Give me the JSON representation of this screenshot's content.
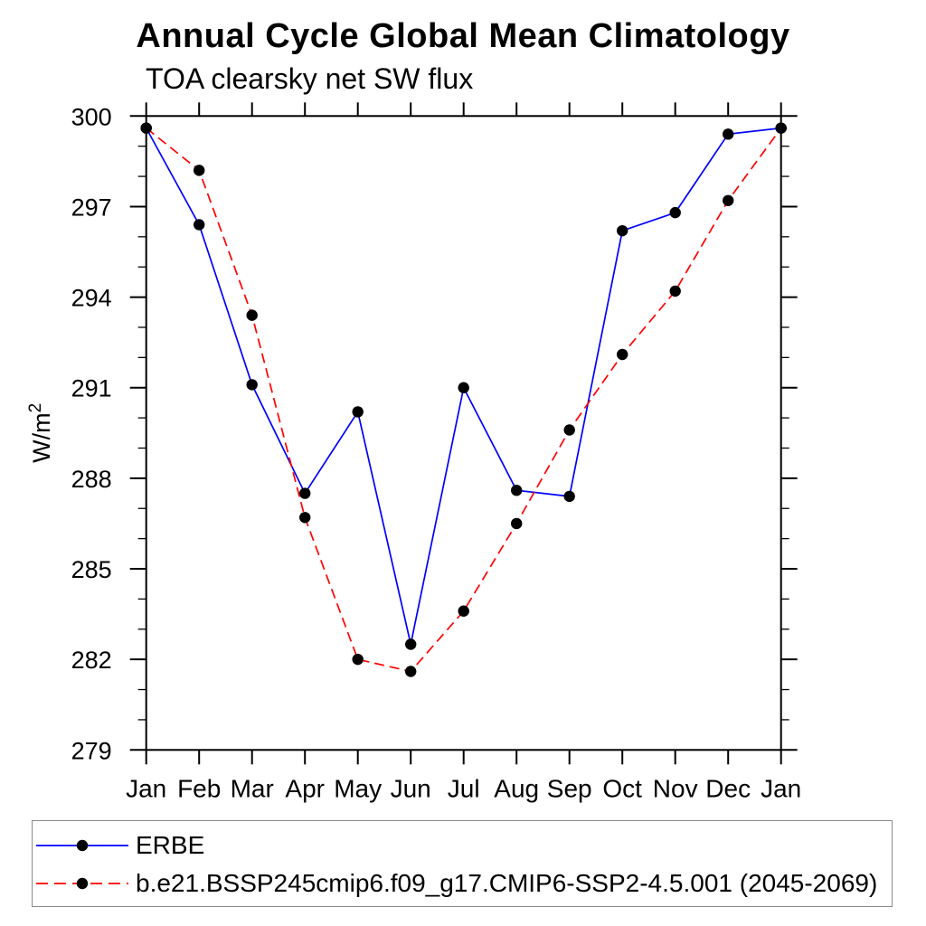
{
  "title": "Annual Cycle Global Mean Climatology",
  "subtitle": "TOA clearsky net SW flux",
  "chart_data": {
    "type": "line",
    "x": [
      "Jan",
      "Feb",
      "Mar",
      "Apr",
      "May",
      "Jun",
      "Jul",
      "Aug",
      "Sep",
      "Oct",
      "Nov",
      "Dec",
      "Jan"
    ],
    "xlabel": "",
    "ylabel": "W/m",
    "ylabel_sup": "2",
    "ylim": [
      279,
      300
    ],
    "yticks": [
      279,
      282,
      285,
      288,
      291,
      294,
      297,
      300
    ],
    "ytick_step": 3,
    "yminor_step": 1,
    "grid": false,
    "legend_position": "bottom-left-box",
    "frame_color": "#000000",
    "marker": "filled-circle",
    "marker_color": "#000000",
    "series": [
      {
        "name": "ERBE",
        "color": "#0000ff",
        "style": "solid",
        "values": [
          299.6,
          296.4,
          291.1,
          287.5,
          290.2,
          282.5,
          291.0,
          287.6,
          287.4,
          296.2,
          296.8,
          299.4,
          299.6
        ]
      },
      {
        "name": "b.e21.BSSP245cmip6.f09_g17.CMIP6-SSP2-4.5.001 (2045-2069)",
        "color": "#ff0000",
        "style": "dashed",
        "values": [
          299.6,
          298.2,
          293.4,
          286.7,
          282.0,
          281.6,
          283.6,
          286.5,
          289.6,
          292.1,
          294.2,
          297.2,
          299.6
        ]
      }
    ]
  }
}
